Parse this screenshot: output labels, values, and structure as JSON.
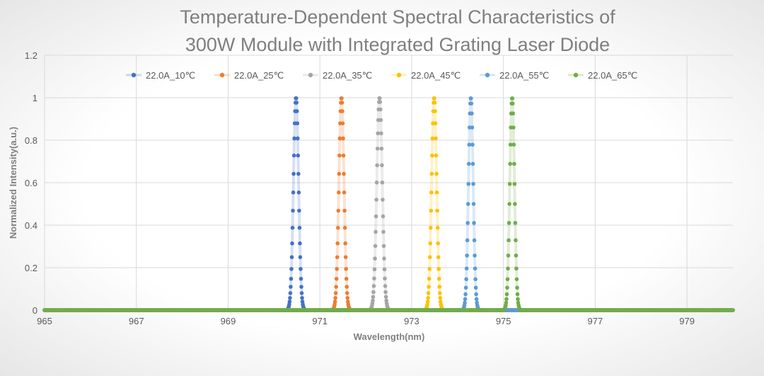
{
  "chart_data": {
    "type": "scatter",
    "title": [
      "Temperature-Dependent Spectral Characteristics of",
      "300W  Module with Integrated Grating Laser Diode"
    ],
    "xlabel": "Wavelength(nm)",
    "ylabel": "Normalized Intensity(a.u.)",
    "xlim": [
      965,
      980
    ],
    "ylim": [
      0,
      1.2
    ],
    "xticks": [
      965,
      967,
      969,
      971,
      973,
      975,
      977,
      979
    ],
    "yticks": [
      0,
      0.2,
      0.4,
      0.6,
      0.8,
      1,
      1.2
    ],
    "grid": true,
    "legend_position": "top",
    "series": [
      {
        "name": "22.0A_10℃",
        "color": "#4472C4",
        "peak_center": 970.48,
        "peak_value": 1,
        "fwhm": 0.13
      },
      {
        "name": "22.0A_25℃",
        "color": "#ED7D31",
        "peak_center": 971.47,
        "peak_value": 1,
        "fwhm": 0.13
      },
      {
        "name": "22.0A_35℃",
        "color": "#A5A5A5",
        "peak_center": 972.3,
        "peak_value": 1,
        "fwhm": 0.14
      },
      {
        "name": "22.0A_45℃",
        "color": "#FFC000",
        "peak_center": 973.49,
        "peak_value": 1,
        "fwhm": 0.13
      },
      {
        "name": "22.0A_55℃",
        "color": "#5B9BD5",
        "peak_center": 974.29,
        "peak_value": 1,
        "fwhm": 0.12
      },
      {
        "name": "22.0A_65℃",
        "color": "#70AD47",
        "peak_center": 975.19,
        "peak_value": 1,
        "fwhm": 0.12
      }
    ]
  }
}
